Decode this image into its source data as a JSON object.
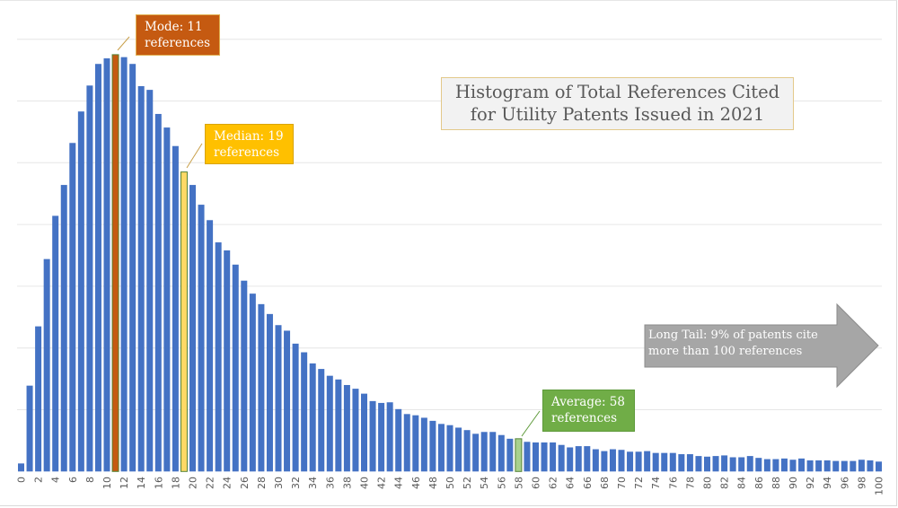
{
  "chart_data": {
    "type": "bar",
    "title": "Histogram of Total References Cited for Utility Patents Issued in 2021",
    "title_lines": [
      "Histogram of Total References Cited",
      "for Utility Patents Issued in 2021"
    ],
    "xlabel": "",
    "ylabel": "",
    "y_units": "gridline intervals (y-axis unlabeled)",
    "ylim": [
      0,
      7
    ],
    "grid": true,
    "legend": "none",
    "x": [
      0,
      1,
      2,
      3,
      4,
      5,
      6,
      7,
      8,
      9,
      10,
      11,
      12,
      13,
      14,
      15,
      16,
      17,
      18,
      19,
      20,
      21,
      22,
      23,
      24,
      25,
      26,
      27,
      28,
      29,
      30,
      31,
      32,
      33,
      34,
      35,
      36,
      37,
      38,
      39,
      40,
      41,
      42,
      43,
      44,
      45,
      46,
      47,
      48,
      49,
      50,
      51,
      52,
      53,
      54,
      55,
      56,
      57,
      58,
      59,
      60,
      61,
      62,
      63,
      64,
      65,
      66,
      67,
      68,
      69,
      70,
      71,
      72,
      73,
      74,
      75,
      76,
      77,
      78,
      79,
      80,
      81,
      82,
      83,
      84,
      85,
      86,
      87,
      88,
      89,
      90,
      91,
      92,
      93,
      94,
      95,
      96,
      97,
      98,
      99,
      100
    ],
    "tick_labels": [
      "0",
      "2",
      "4",
      "6",
      "8",
      "10",
      "12",
      "14",
      "16",
      "18",
      "20",
      "22",
      "24",
      "26",
      "28",
      "30",
      "32",
      "34",
      "36",
      "38",
      "40",
      "42",
      "44",
      "46",
      "48",
      "50",
      "52",
      "54",
      "56",
      "58",
      "60",
      "62",
      "64",
      "66",
      "68",
      "70",
      "72",
      "74",
      "76",
      "78",
      "80",
      "82",
      "84",
      "86",
      "88",
      "90",
      "92",
      "94",
      "96",
      "98",
      "100"
    ],
    "values": [
      0.13,
      1.39,
      2.35,
      3.44,
      4.14,
      4.64,
      5.32,
      5.83,
      6.25,
      6.6,
      6.69,
      6.75,
      6.71,
      6.6,
      6.24,
      6.18,
      5.79,
      5.57,
      5.27,
      4.85,
      4.64,
      4.32,
      4.07,
      3.71,
      3.58,
      3.35,
      3.09,
      2.88,
      2.71,
      2.55,
      2.37,
      2.28,
      2.07,
      1.93,
      1.75,
      1.66,
      1.55,
      1.49,
      1.4,
      1.34,
      1.26,
      1.14,
      1.11,
      1.12,
      1.01,
      0.93,
      0.91,
      0.87,
      0.82,
      0.77,
      0.75,
      0.71,
      0.67,
      0.61,
      0.64,
      0.64,
      0.59,
      0.53,
      0.53,
      0.48,
      0.47,
      0.47,
      0.47,
      0.43,
      0.39,
      0.41,
      0.41,
      0.36,
      0.33,
      0.36,
      0.35,
      0.32,
      0.32,
      0.33,
      0.3,
      0.3,
      0.3,
      0.28,
      0.28,
      0.25,
      0.24,
      0.25,
      0.26,
      0.23,
      0.23,
      0.25,
      0.22,
      0.2,
      0.2,
      0.21,
      0.19,
      0.21,
      0.18,
      0.18,
      0.18,
      0.17,
      0.17,
      0.17,
      0.19,
      0.18,
      0.16
    ],
    "highlights": [
      {
        "x": 11,
        "role": "mode",
        "color": "#c55a11"
      },
      {
        "x": 19,
        "role": "median",
        "color": "#ffd966"
      },
      {
        "x": 58,
        "role": "average",
        "color": "#a9d18e"
      }
    ],
    "bar_color": "#4472c4",
    "annotations": [
      {
        "name": "mode",
        "lines": [
          "Mode: 11",
          "references"
        ],
        "color": "#c55a11"
      },
      {
        "name": "median",
        "lines": [
          "Median: 19",
          "references"
        ],
        "color": "#ffc000"
      },
      {
        "name": "average",
        "lines": [
          "Average: 58",
          "references"
        ],
        "color": "#70ad47"
      },
      {
        "name": "long-tail",
        "lines": [
          "Long Tail: 9% of patents cite",
          "more than 100 references"
        ],
        "color": "#a6a6a6"
      }
    ]
  }
}
